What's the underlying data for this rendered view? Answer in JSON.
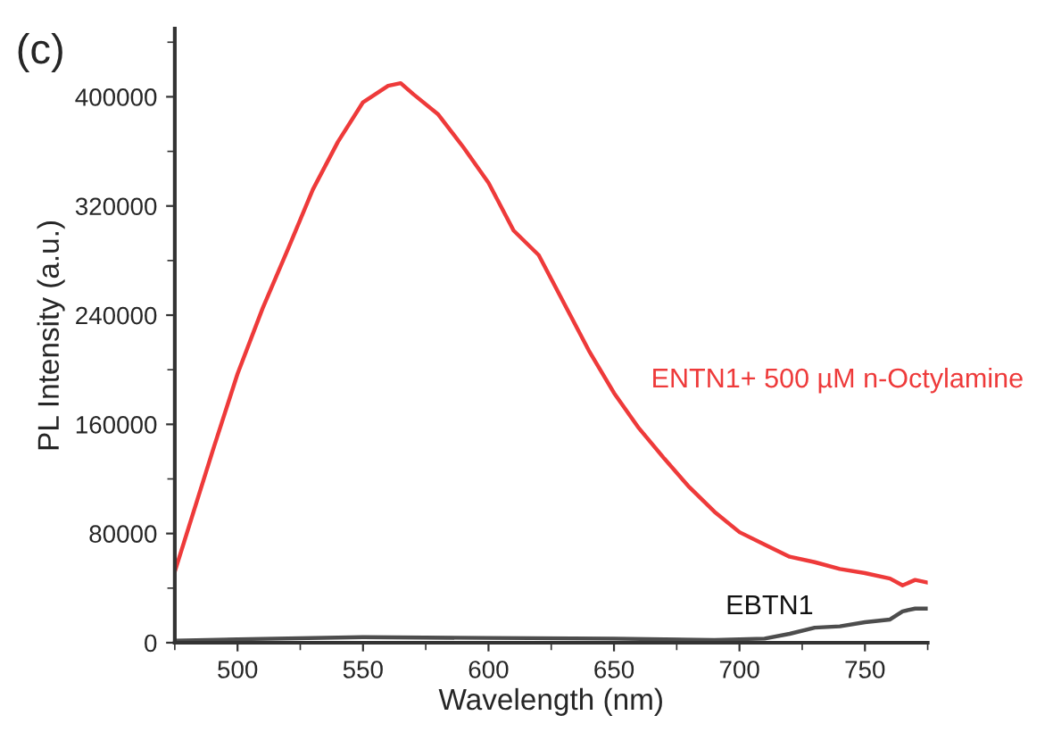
{
  "chart_data": {
    "type": "line",
    "title": "(c)",
    "xlabel": "Wavelength (nm)",
    "ylabel": "PL Intensity (a.u.)",
    "xlim": [
      475,
      775
    ],
    "xticks": [
      500,
      550,
      600,
      650,
      700,
      750
    ],
    "ylim": [
      0,
      450000
    ],
    "yticks": [
      0,
      80000,
      160000,
      240000,
      320000,
      400000
    ],
    "grid": false,
    "legend": false,
    "series": [
      {
        "name": "ENTN1+ 500 µM n-Octylamine",
        "color": "#ee3a3a",
        "x": [
          475,
          490,
          500,
          510,
          520,
          530,
          540,
          550,
          560,
          565,
          570,
          580,
          590,
          600,
          610,
          620,
          630,
          640,
          650,
          660,
          670,
          680,
          690,
          700,
          710,
          720,
          730,
          740,
          750,
          760,
          765,
          770,
          775
        ],
        "values": [
          52000,
          140000,
          197000,
          245000,
          288000,
          332000,
          367000,
          396000,
          408000,
          410000,
          402000,
          387000,
          363000,
          337000,
          302000,
          284000,
          249000,
          214000,
          183000,
          157000,
          135000,
          114000,
          96000,
          81000,
          72000,
          63000,
          59000,
          54000,
          51000,
          47000,
          42000,
          46000,
          44000
        ]
      },
      {
        "name": "EBTN1",
        "color": "#4d4d4d",
        "x": [
          475,
          500,
          550,
          600,
          650,
          690,
          700,
          710,
          720,
          730,
          740,
          750,
          760,
          765,
          770,
          775
        ],
        "values": [
          1500,
          2500,
          4000,
          3500,
          3000,
          2000,
          2500,
          3000,
          6500,
          11000,
          12000,
          15000,
          17000,
          23000,
          25000,
          25000
        ]
      }
    ]
  }
}
